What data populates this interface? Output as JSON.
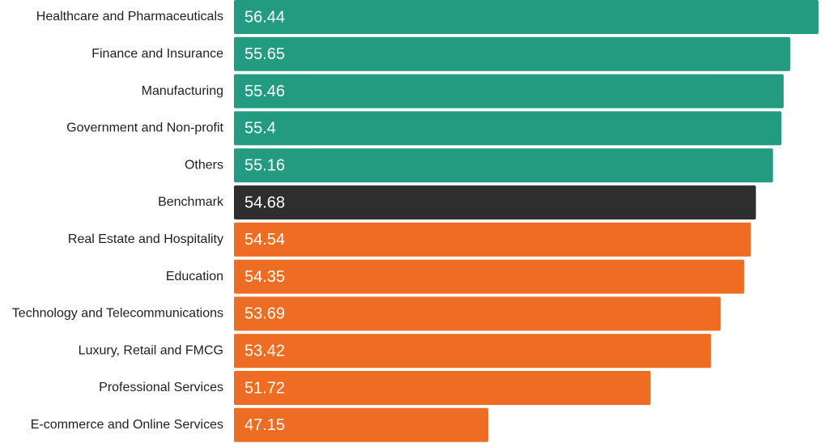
{
  "colors": {
    "above": "#239B80",
    "benchmark": "#2E2E2E",
    "below": "#EF6C23",
    "label_text": "#1f1f1f",
    "value_text": "#ffffff"
  },
  "chart_data": {
    "type": "bar",
    "orientation": "horizontal",
    "title": "",
    "xlabel": "",
    "ylabel": "",
    "xlim": [
      40,
      56.44
    ],
    "grid": false,
    "legend": "none",
    "categories": [
      "Healthcare and Pharmaceuticals",
      "Finance and Insurance",
      "Manufacturing",
      "Government and Non-profit",
      "Others",
      "Benchmark",
      "Real Estate and Hospitality",
      "Education",
      "Technology and Telecommunications",
      "Luxury, Retail and FMCG",
      "Professional Services",
      "E-commerce and Online Services"
    ],
    "values": [
      56.44,
      55.65,
      55.46,
      55.4,
      55.16,
      54.68,
      54.54,
      54.35,
      53.69,
      53.42,
      51.72,
      47.15
    ],
    "value_labels": [
      "56.44",
      "55.65",
      "55.46",
      "55.4",
      "55.16",
      "54.68",
      "54.54",
      "54.35",
      "53.69",
      "53.42",
      "51.72",
      "47.15"
    ],
    "groups": [
      "above",
      "above",
      "above",
      "above",
      "above",
      "benchmark",
      "below",
      "below",
      "below",
      "below",
      "below",
      "below"
    ]
  }
}
